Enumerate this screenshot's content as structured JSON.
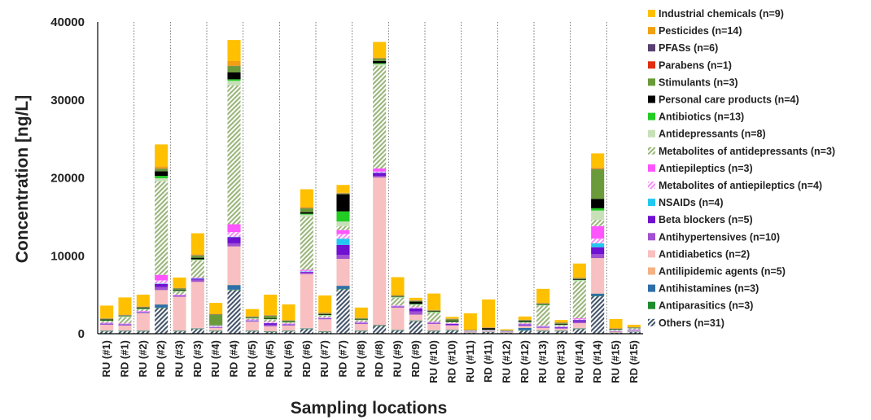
{
  "chart_data": {
    "type": "bar",
    "stacked": true,
    "title": "",
    "xlabel": "Sampling locations",
    "ylabel": "Concentration [ng/L]",
    "ylim": [
      0,
      40000
    ],
    "yticks": [
      0,
      10000,
      20000,
      30000,
      40000
    ],
    "grid": false,
    "legend_position": "right",
    "categories": [
      "RU (#1)",
      "RD (#1)",
      "RU (#2)",
      "RD (#2)",
      "RU (#3)",
      "RD (#3)",
      "RU (#4)",
      "RD (#4)",
      "RU (#5)",
      "RD (#5)",
      "RU (#6)",
      "RD (#6)",
      "RU (#7)",
      "RD (#7)",
      "RU (#8)",
      "RD (#8)",
      "RU (#9)",
      "RD (#9)",
      "RU (#10)",
      "RD (#10)",
      "RU (#11)",
      "RD (#11)",
      "RU (#12)",
      "RD (#12)",
      "RU (#13)",
      "RD (#13)",
      "RU (#14)",
      "RD (#14)",
      "RU (#15)",
      "RD (#15)"
    ],
    "series": [
      {
        "name": "Others (n=31)",
        "color": "#44546a",
        "pattern": "hatch",
        "values": [
          300,
          300,
          300,
          3300,
          300,
          600,
          300,
          5600,
          300,
          200,
          300,
          600,
          200,
          5700,
          300,
          1000,
          400,
          1600,
          300,
          400,
          100,
          200,
          100,
          400,
          300,
          300,
          600,
          4800,
          100,
          200
        ]
      },
      {
        "name": "Antiparasitics (n=3)",
        "color": "#1e8c2e",
        "values": [
          50,
          50,
          50,
          50,
          50,
          50,
          50,
          50,
          50,
          50,
          50,
          50,
          50,
          50,
          50,
          50,
          50,
          50,
          50,
          50,
          20,
          20,
          20,
          50,
          50,
          50,
          50,
          50,
          20,
          20
        ]
      },
      {
        "name": "Antihistamines (n=3)",
        "color": "#2e6fa8",
        "values": [
          50,
          50,
          50,
          400,
          50,
          50,
          50,
          600,
          50,
          50,
          50,
          50,
          50,
          400,
          50,
          50,
          50,
          50,
          50,
          50,
          20,
          20,
          20,
          300,
          50,
          50,
          50,
          300,
          20,
          50
        ]
      },
      {
        "name": "Antilipidemic agents (n=5)",
        "color": "#f4b183",
        "values": [
          50,
          50,
          50,
          50,
          50,
          50,
          50,
          50,
          50,
          50,
          50,
          50,
          50,
          50,
          50,
          50,
          50,
          50,
          50,
          50,
          20,
          20,
          20,
          50,
          50,
          50,
          50,
          50,
          20,
          20
        ]
      },
      {
        "name": "Antidiabetics (n=2)",
        "color": "#f8c0c0",
        "values": [
          700,
          600,
          2200,
          1800,
          4300,
          5900,
          300,
          4900,
          1100,
          600,
          600,
          6900,
          1500,
          3400,
          800,
          18900,
          2800,
          700,
          800,
          500,
          100,
          100,
          50,
          200,
          300,
          200,
          600,
          4500,
          100,
          100
        ]
      },
      {
        "name": "Antihypertensives (n=10)",
        "color": "#a050d0",
        "values": [
          100,
          100,
          100,
          400,
          100,
          300,
          50,
          400,
          100,
          200,
          100,
          200,
          100,
          500,
          100,
          200,
          100,
          400,
          100,
          100,
          20,
          20,
          20,
          100,
          100,
          100,
          200,
          500,
          50,
          50
        ]
      },
      {
        "name": "Beta blockers (n=5)",
        "color": "#7010d0",
        "values": [
          50,
          50,
          50,
          400,
          50,
          100,
          50,
          800,
          50,
          200,
          50,
          100,
          50,
          1300,
          50,
          400,
          50,
          400,
          50,
          100,
          20,
          20,
          20,
          100,
          50,
          100,
          200,
          900,
          20,
          50
        ]
      },
      {
        "name": "NSAIDs (n=4)",
        "color": "#22c8f0",
        "values": [
          20,
          20,
          20,
          50,
          20,
          50,
          20,
          50,
          20,
          20,
          20,
          50,
          20,
          800,
          20,
          50,
          20,
          20,
          20,
          20,
          20,
          20,
          20,
          20,
          20,
          20,
          20,
          500,
          20,
          20
        ]
      },
      {
        "name": "Metabolites of antiepileptics (n=4)",
        "color": "#f48ef4",
        "pattern": "hatch",
        "values": [
          50,
          50,
          50,
          400,
          50,
          50,
          50,
          600,
          50,
          100,
          50,
          100,
          50,
          600,
          50,
          100,
          50,
          100,
          50,
          50,
          20,
          20,
          20,
          50,
          50,
          50,
          100,
          600,
          20,
          50
        ]
      },
      {
        "name": "Antiepileptics (n=3)",
        "color": "#ff55ff",
        "values": [
          50,
          50,
          50,
          700,
          50,
          50,
          50,
          1000,
          50,
          50,
          50,
          100,
          50,
          500,
          50,
          400,
          50,
          50,
          50,
          50,
          20,
          20,
          20,
          50,
          50,
          50,
          100,
          1600,
          20,
          20
        ]
      },
      {
        "name": "Metabolites of antidepressants (n=3)",
        "color": "#9ab57a",
        "pattern": "hatch",
        "values": [
          200,
          800,
          200,
          12000,
          400,
          2200,
          50,
          17800,
          100,
          300,
          100,
          6800,
          200,
          500,
          200,
          13200,
          1000,
          300,
          1200,
          100,
          20,
          20,
          20,
          100,
          2600,
          100,
          4800,
          800,
          100,
          100
        ]
      },
      {
        "name": "Antidepressants (n=8)",
        "color": "#c8e0b8",
        "values": [
          50,
          100,
          50,
          400,
          50,
          100,
          50,
          600,
          50,
          50,
          50,
          300,
          50,
          600,
          50,
          200,
          50,
          50,
          50,
          50,
          20,
          20,
          20,
          50,
          50,
          50,
          100,
          1200,
          20,
          20
        ]
      },
      {
        "name": "Antibiotics (n=13)",
        "color": "#22cc22",
        "values": [
          50,
          50,
          50,
          300,
          50,
          50,
          50,
          200,
          50,
          50,
          50,
          100,
          50,
          1300,
          50,
          100,
          50,
          50,
          50,
          50,
          20,
          20,
          20,
          50,
          50,
          50,
          50,
          300,
          20,
          20
        ]
      },
      {
        "name": "Personal care products (n=4)",
        "color": "#000000",
        "values": [
          100,
          50,
          100,
          600,
          100,
          200,
          50,
          900,
          50,
          100,
          50,
          200,
          100,
          2200,
          50,
          300,
          50,
          300,
          50,
          100,
          20,
          200,
          20,
          100,
          50,
          100,
          100,
          1200,
          50,
          20
        ]
      },
      {
        "name": "Stimulants (n=3)",
        "color": "#6a9a3a",
        "values": [
          100,
          50,
          100,
          300,
          200,
          300,
          1300,
          800,
          100,
          300,
          100,
          500,
          100,
          100,
          100,
          300,
          100,
          100,
          100,
          200,
          20,
          20,
          20,
          100,
          100,
          100,
          100,
          3800,
          50,
          50
        ]
      },
      {
        "name": "Parabens (n=1)",
        "color": "#e03010",
        "values": [
          20,
          20,
          20,
          20,
          20,
          20,
          20,
          20,
          20,
          20,
          20,
          20,
          20,
          20,
          20,
          20,
          20,
          20,
          20,
          20,
          20,
          20,
          20,
          20,
          20,
          20,
          20,
          20,
          20,
          20
        ]
      },
      {
        "name": "PFASs (n=6)",
        "color": "#5a4070",
        "values": [
          20,
          20,
          20,
          20,
          20,
          20,
          20,
          20,
          20,
          20,
          20,
          20,
          20,
          20,
          20,
          20,
          20,
          20,
          20,
          20,
          20,
          20,
          20,
          20,
          20,
          20,
          20,
          20,
          20,
          20
        ]
      },
      {
        "name": "Pesticides (n=14)",
        "color": "#f0a010",
        "values": [
          50,
          50,
          50,
          300,
          50,
          100,
          50,
          600,
          50,
          50,
          50,
          100,
          50,
          50,
          50,
          100,
          50,
          50,
          50,
          50,
          20,
          20,
          20,
          50,
          50,
          50,
          50,
          200,
          20,
          20
        ]
      },
      {
        "name": "Industrial chemicals (n=9)",
        "color": "#ffc000",
        "values": [
          1600,
          2200,
          1500,
          2800,
          1300,
          2700,
          1400,
          2700,
          900,
          2600,
          2000,
          2300,
          2200,
          1000,
          1300,
          2000,
          2300,
          300,
          2100,
          200,
          2100,
          3600,
          100,
          400,
          1800,
          300,
          1800,
          1800,
          1200,
          300
        ]
      }
    ]
  }
}
